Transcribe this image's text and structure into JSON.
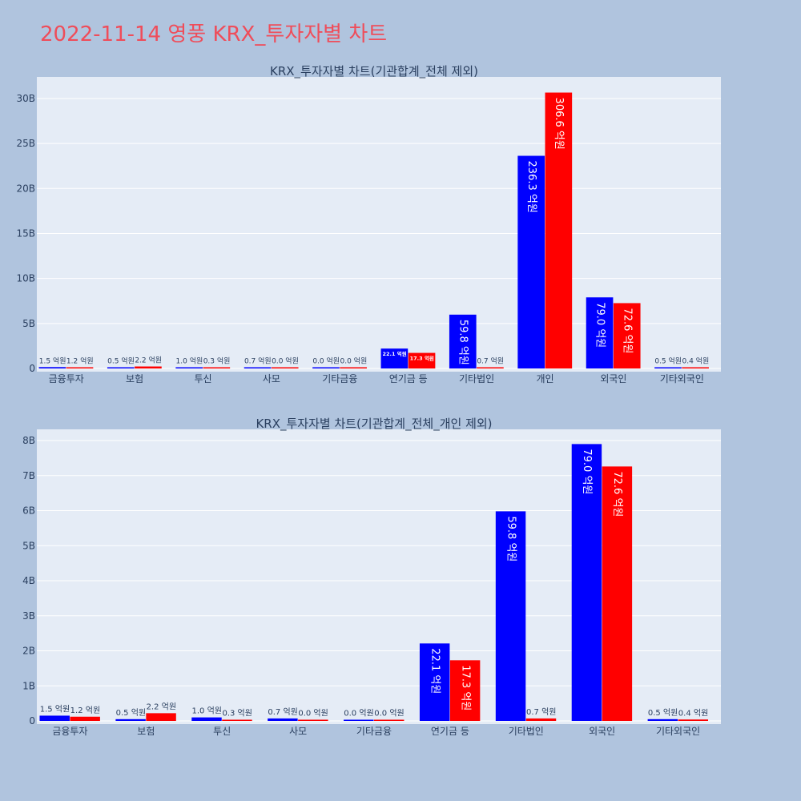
{
  "page": {
    "title": "2022-11-14 영풍 KRX_투자자별 차트"
  },
  "colors": {
    "buy": "#0000ff",
    "sell": "#ff0000",
    "plot_bg": "#e5ecf6",
    "page_bg": "#b0c4de",
    "title": "#ef4d5a"
  },
  "chart_data": [
    {
      "type": "bar",
      "title": "KRX_투자자별 차트(기관합계_전체 제외)",
      "categories": [
        "금융투자",
        "보험",
        "투신",
        "사모",
        "기타금융",
        "연기금 등",
        "기타법인",
        "개인",
        "외국인",
        "기타외국인"
      ],
      "series": [
        {
          "values": [
            150000000,
            50000000,
            100000000,
            70000000,
            0,
            2210000000,
            5980000000,
            23630000000,
            7900000000,
            50000000
          ],
          "labels": [
            "1.5 억원",
            "0.5 억원",
            "1.0 억원",
            "0.7 억원",
            "0.0 억원",
            "22.1 억원",
            "59.8 억원",
            "236.3 억원",
            "79.0 억원",
            "0.5 억원"
          ]
        },
        {
          "values": [
            120000000,
            220000000,
            30000000,
            0,
            0,
            1730000000,
            70000000,
            30660000000,
            7260000000,
            40000000
          ],
          "labels": [
            "1.2 억원",
            "2.2 억원",
            "0.3 억원",
            "0.0 억원",
            "0.0 억원",
            "17.3 억원",
            "0.7 억원",
            "306.6 억원",
            "72.6 억원",
            "0.4 억원"
          ]
        }
      ],
      "yticks": [
        0,
        5000000000,
        10000000000,
        15000000000,
        20000000000,
        25000000000,
        30000000000
      ],
      "ytick_labels": [
        "0",
        "5B",
        "10B",
        "15B",
        "20B",
        "25B",
        "30B"
      ],
      "ylim": [
        0,
        32400000000
      ],
      "grid": true,
      "legend": "none"
    },
    {
      "type": "bar",
      "title": "KRX_투자자별 차트(기관합계_전체_개인 제외)",
      "categories": [
        "금융투자",
        "보험",
        "투신",
        "사모",
        "기타금융",
        "연기금 등",
        "기타법인",
        "외국인",
        "기타외국인"
      ],
      "series": [
        {
          "values": [
            150000000,
            50000000,
            100000000,
            70000000,
            0,
            2210000000,
            5980000000,
            7900000000,
            50000000
          ],
          "labels": [
            "1.5 억원",
            "0.5 억원",
            "1.0 억원",
            "0.7 억원",
            "0.0 억원",
            "22.1 억원",
            "59.8 억원",
            "79.0 억원",
            "0.5 억원"
          ]
        },
        {
          "values": [
            120000000,
            220000000,
            30000000,
            0,
            0,
            1730000000,
            70000000,
            7260000000,
            40000000
          ],
          "labels": [
            "1.2 억원",
            "2.2 억원",
            "0.3 억원",
            "0.0 억원",
            "0.0 억원",
            "17.3 억원",
            "0.7 억원",
            "72.6 억원",
            "0.4 억원"
          ]
        }
      ],
      "yticks": [
        0,
        1000000000,
        2000000000,
        3000000000,
        4000000000,
        5000000000,
        6000000000,
        7000000000,
        8000000000
      ],
      "ytick_labels": [
        "0",
        "1B",
        "2B",
        "3B",
        "4B",
        "5B",
        "6B",
        "7B",
        "8B"
      ],
      "ylim": [
        0,
        8320000000
      ],
      "grid": true,
      "legend": "none"
    }
  ]
}
